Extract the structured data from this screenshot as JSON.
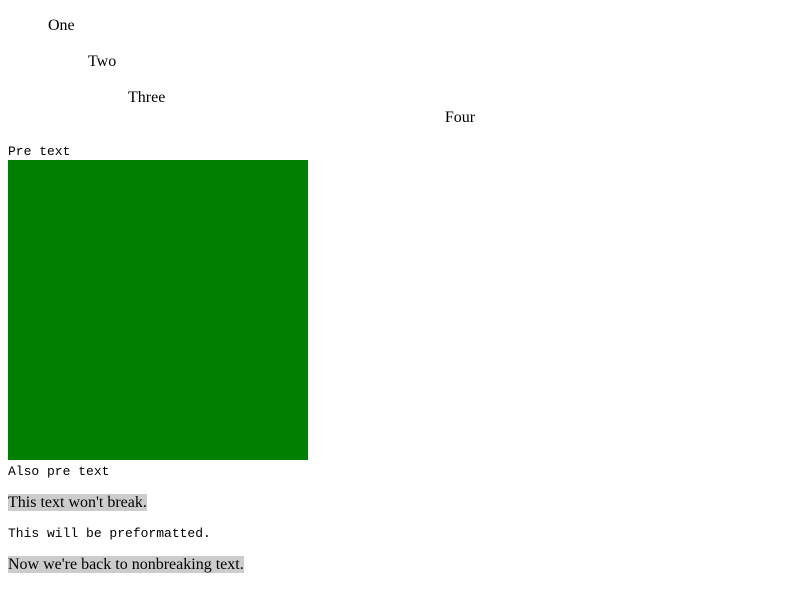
{
  "document": {
    "list_items": [
      "One",
      "Two",
      "Three"
    ],
    "centered": "Four",
    "pre_text": "Pre text",
    "also_pre_text": "Also pre text",
    "nobreak_1": "This text won't break.",
    "preformatted": "This will be preformatted.",
    "nobreak_2": "Now we're back to nonbreaking text.",
    "box_color": "#008000",
    "highlight_color": "#cccccc"
  }
}
